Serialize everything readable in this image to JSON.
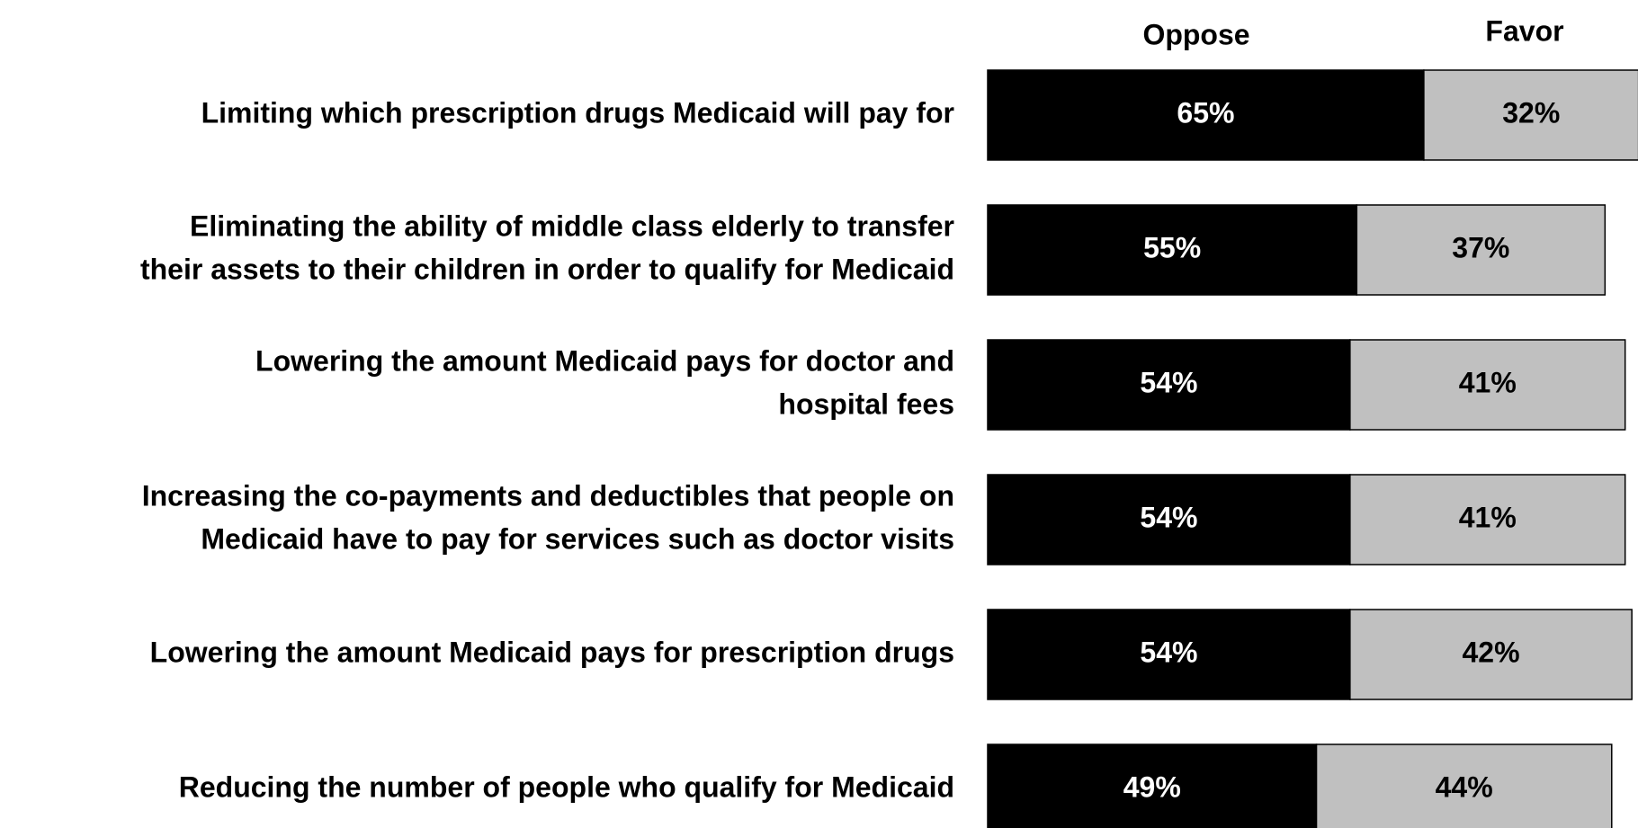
{
  "chart_data": {
    "type": "bar",
    "orientation": "horizontal",
    "stacked": true,
    "title": "",
    "xlabel": "",
    "ylabel": "",
    "legend_position": "top-right",
    "grid": false,
    "categories": [
      "Limiting which prescription drugs Medicaid will pay for",
      "Eliminating the ability of middle class elderly to transfer their assets to their children in order to qualify for Medicaid",
      "Lowering the amount Medicaid pays for doctor and hospital fees",
      "Increasing the co-payments and deductibles that people on Medicaid have to pay for services such as doctor visits",
      "Lowering  the amount Medicaid pays for prescription drugs",
      "Reducing the number of people who qualify for Medicaid"
    ],
    "category_lines": [
      [
        "Limiting which prescription drugs Medicaid will pay for"
      ],
      [
        "Eliminating the ability of middle class elderly to transfer",
        "their assets to their children in order to qualify for Medicaid"
      ],
      [
        "Lowering the amount Medicaid pays for doctor and",
        "hospital fees"
      ],
      [
        "Increasing the co-payments and deductibles that people on",
        "Medicaid have to pay for services such as doctor visits"
      ],
      [
        "Lowering  the amount Medicaid pays for prescription drugs"
      ],
      [
        "Reducing the number of people who qualify for Medicaid"
      ]
    ],
    "series": [
      {
        "name": "Oppose",
        "color": "#000000",
        "text_color": "#ffffff",
        "values": [
          65,
          55,
          54,
          54,
          54,
          49
        ],
        "labels": [
          "65%",
          "55%",
          "54%",
          "54%",
          "54%",
          "49%"
        ]
      },
      {
        "name": "Favor",
        "color": "#c0c0c0",
        "text_color": "#000000",
        "values": [
          32,
          37,
          41,
          41,
          42,
          44
        ],
        "labels": [
          "32%",
          "37%",
          "41%",
          "41%",
          "42%",
          "44%"
        ]
      }
    ],
    "xlim": [
      0,
      100
    ]
  }
}
